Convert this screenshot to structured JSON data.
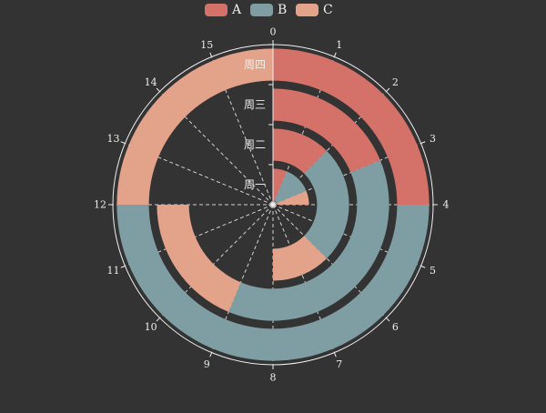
{
  "chart_data": {
    "type": "polar-stacked-bar",
    "title": "",
    "angle_axis": {
      "min": 0,
      "max": 16,
      "ticks": [
        "0",
        "1",
        "2",
        "3",
        "4",
        "5",
        "6",
        "7",
        "8",
        "9",
        "10",
        "11",
        "12",
        "13",
        "14",
        "15"
      ]
    },
    "radius_axis": {
      "categories": [
        "周一",
        "周二",
        "周三",
        "周四"
      ]
    },
    "series": [
      {
        "name": "A",
        "values": [
          1,
          2,
          3,
          4
        ],
        "color": "#d4726a"
      },
      {
        "name": "B",
        "values": [
          2,
          4,
          6,
          8
        ],
        "color": "#7f9ea3"
      },
      {
        "name": "C",
        "values": [
          1,
          2,
          3,
          4
        ],
        "color": "#e3a28a"
      }
    ],
    "legend": {
      "position": "top-center"
    },
    "background": "#333333",
    "axis_color": "#eeeeee",
    "split_line": "dashed"
  }
}
